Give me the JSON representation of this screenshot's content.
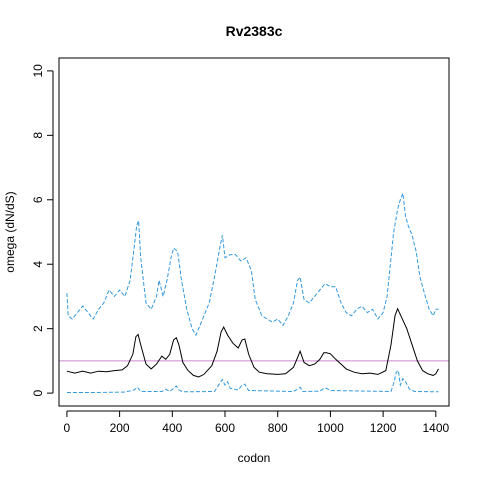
{
  "chart_data": {
    "type": "line",
    "title": "Rv2383c",
    "xlabel": "codon",
    "ylabel": "omega (dN/dS)",
    "xlim": [
      -30,
      1450
    ],
    "ylim": [
      -0.4,
      10.4
    ],
    "xticks": [
      "0",
      "200",
      "400",
      "600",
      "800",
      "1000",
      "1200",
      "1400"
    ],
    "yticks": [
      "0",
      "2",
      "4",
      "6",
      "8",
      "10"
    ],
    "grid": false,
    "legend": "none",
    "reference_line": {
      "y": 1,
      "color": "#cc88cc"
    },
    "series": [
      {
        "role": "mean",
        "color": "#000000",
        "dash": "solid",
        "points": [
          [
            0,
            0.68
          ],
          [
            30,
            0.62
          ],
          [
            60,
            0.68
          ],
          [
            90,
            0.62
          ],
          [
            120,
            0.68
          ],
          [
            150,
            0.66
          ],
          [
            180,
            0.7
          ],
          [
            210,
            0.72
          ],
          [
            230,
            0.85
          ],
          [
            250,
            1.2
          ],
          [
            262,
            1.75
          ],
          [
            270,
            1.82
          ],
          [
            280,
            1.5
          ],
          [
            300,
            0.9
          ],
          [
            320,
            0.75
          ],
          [
            340,
            0.9
          ],
          [
            360,
            1.15
          ],
          [
            375,
            1.05
          ],
          [
            390,
            1.2
          ],
          [
            405,
            1.65
          ],
          [
            415,
            1.72
          ],
          [
            425,
            1.5
          ],
          [
            440,
            0.95
          ],
          [
            460,
            0.7
          ],
          [
            480,
            0.55
          ],
          [
            500,
            0.5
          ],
          [
            520,
            0.58
          ],
          [
            550,
            0.85
          ],
          [
            570,
            1.3
          ],
          [
            585,
            1.9
          ],
          [
            595,
            2.05
          ],
          [
            610,
            1.8
          ],
          [
            630,
            1.55
          ],
          [
            650,
            1.4
          ],
          [
            665,
            1.65
          ],
          [
            675,
            1.68
          ],
          [
            690,
            1.2
          ],
          [
            710,
            0.8
          ],
          [
            730,
            0.65
          ],
          [
            760,
            0.6
          ],
          [
            800,
            0.58
          ],
          [
            830,
            0.6
          ],
          [
            860,
            0.8
          ],
          [
            875,
            1.1
          ],
          [
            885,
            1.3
          ],
          [
            900,
            0.95
          ],
          [
            920,
            0.85
          ],
          [
            940,
            0.9
          ],
          [
            960,
            1.05
          ],
          [
            975,
            1.25
          ],
          [
            985,
            1.25
          ],
          [
            1000,
            1.22
          ],
          [
            1020,
            1.05
          ],
          [
            1040,
            0.9
          ],
          [
            1060,
            0.75
          ],
          [
            1090,
            0.65
          ],
          [
            1120,
            0.6
          ],
          [
            1150,
            0.62
          ],
          [
            1180,
            0.58
          ],
          [
            1210,
            0.7
          ],
          [
            1230,
            1.5
          ],
          [
            1245,
            2.4
          ],
          [
            1255,
            2.62
          ],
          [
            1270,
            2.35
          ],
          [
            1290,
            2.0
          ],
          [
            1310,
            1.5
          ],
          [
            1330,
            1.0
          ],
          [
            1350,
            0.7
          ],
          [
            1370,
            0.6
          ],
          [
            1390,
            0.55
          ],
          [
            1400,
            0.6
          ],
          [
            1410,
            0.75
          ]
        ]
      },
      {
        "role": "upper",
        "color": "#3399dd",
        "dash": "dashed",
        "points": [
          [
            0,
            3.1
          ],
          [
            5,
            2.4
          ],
          [
            20,
            2.3
          ],
          [
            40,
            2.5
          ],
          [
            60,
            2.7
          ],
          [
            80,
            2.5
          ],
          [
            100,
            2.3
          ],
          [
            120,
            2.6
          ],
          [
            140,
            2.8
          ],
          [
            160,
            3.2
          ],
          [
            180,
            3.0
          ],
          [
            200,
            3.2
          ],
          [
            220,
            3.0
          ],
          [
            240,
            3.5
          ],
          [
            255,
            4.5
          ],
          [
            265,
            5.2
          ],
          [
            272,
            5.35
          ],
          [
            280,
            4.2
          ],
          [
            300,
            2.8
          ],
          [
            320,
            2.6
          ],
          [
            340,
            3.0
          ],
          [
            350,
            3.5
          ],
          [
            365,
            3.0
          ],
          [
            380,
            3.5
          ],
          [
            395,
            4.2
          ],
          [
            405,
            4.5
          ],
          [
            420,
            4.4
          ],
          [
            435,
            3.5
          ],
          [
            455,
            2.6
          ],
          [
            475,
            2.0
          ],
          [
            490,
            1.8
          ],
          [
            510,
            2.2
          ],
          [
            540,
            2.8
          ],
          [
            560,
            3.6
          ],
          [
            580,
            4.5
          ],
          [
            590,
            4.9
          ],
          [
            600,
            4.2
          ],
          [
            620,
            4.3
          ],
          [
            640,
            4.3
          ],
          [
            660,
            4.1
          ],
          [
            680,
            4.2
          ],
          [
            700,
            3.8
          ],
          [
            715,
            2.9
          ],
          [
            740,
            2.4
          ],
          [
            760,
            2.3
          ],
          [
            780,
            2.2
          ],
          [
            800,
            2.3
          ],
          [
            820,
            2.1
          ],
          [
            840,
            2.4
          ],
          [
            860,
            2.8
          ],
          [
            875,
            3.5
          ],
          [
            885,
            3.6
          ],
          [
            900,
            2.9
          ],
          [
            920,
            2.8
          ],
          [
            940,
            3.0
          ],
          [
            960,
            3.2
          ],
          [
            980,
            3.4
          ],
          [
            1000,
            3.3
          ],
          [
            1020,
            3.3
          ],
          [
            1040,
            2.8
          ],
          [
            1060,
            2.5
          ],
          [
            1080,
            2.4
          ],
          [
            1100,
            2.6
          ],
          [
            1120,
            2.7
          ],
          [
            1140,
            2.5
          ],
          [
            1160,
            2.6
          ],
          [
            1180,
            2.3
          ],
          [
            1200,
            2.5
          ],
          [
            1215,
            3.0
          ],
          [
            1225,
            3.8
          ],
          [
            1240,
            5.0
          ],
          [
            1255,
            5.7
          ],
          [
            1265,
            6.0
          ],
          [
            1275,
            6.2
          ],
          [
            1285,
            5.5
          ],
          [
            1295,
            5.2
          ],
          [
            1310,
            4.9
          ],
          [
            1325,
            4.4
          ],
          [
            1340,
            3.6
          ],
          [
            1360,
            3.0
          ],
          [
            1375,
            2.6
          ],
          [
            1390,
            2.4
          ],
          [
            1400,
            2.6
          ],
          [
            1410,
            2.6
          ]
        ]
      },
      {
        "role": "lower",
        "color": "#3399dd",
        "dash": "dashed",
        "points": [
          [
            0,
            0.02
          ],
          [
            100,
            0.02
          ],
          [
            220,
            0.03
          ],
          [
            255,
            0.1
          ],
          [
            268,
            0.18
          ],
          [
            280,
            0.05
          ],
          [
            360,
            0.05
          ],
          [
            375,
            0.12
          ],
          [
            390,
            0.05
          ],
          [
            405,
            0.15
          ],
          [
            415,
            0.22
          ],
          [
            425,
            0.1
          ],
          [
            440,
            0.04
          ],
          [
            560,
            0.05
          ],
          [
            580,
            0.3
          ],
          [
            590,
            0.42
          ],
          [
            600,
            0.25
          ],
          [
            610,
            0.35
          ],
          [
            620,
            0.15
          ],
          [
            650,
            0.1
          ],
          [
            665,
            0.25
          ],
          [
            675,
            0.28
          ],
          [
            690,
            0.08
          ],
          [
            860,
            0.05
          ],
          [
            875,
            0.12
          ],
          [
            885,
            0.18
          ],
          [
            895,
            0.05
          ],
          [
            960,
            0.06
          ],
          [
            975,
            0.15
          ],
          [
            985,
            0.15
          ],
          [
            1000,
            0.08
          ],
          [
            1230,
            0.05
          ],
          [
            1240,
            0.3
          ],
          [
            1250,
            0.65
          ],
          [
            1258,
            0.7
          ],
          [
            1265,
            0.25
          ],
          [
            1275,
            0.45
          ],
          [
            1285,
            0.35
          ],
          [
            1300,
            0.12
          ],
          [
            1320,
            0.05
          ],
          [
            1410,
            0.04
          ]
        ]
      }
    ]
  }
}
